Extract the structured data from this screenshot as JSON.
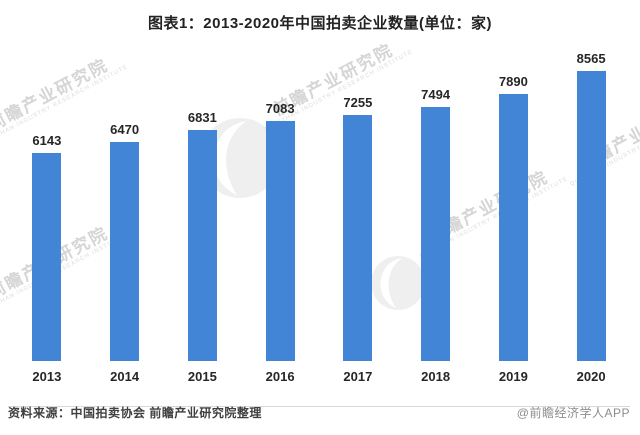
{
  "title": "图表1：2013-2020年中国拍卖企业数量(单位：家)",
  "chart_data": {
    "type": "bar",
    "title": "图表1：2013-2020年中国拍卖企业数量(单位：家)",
    "categories": [
      "2013",
      "2014",
      "2015",
      "2016",
      "2017",
      "2018",
      "2019",
      "2020"
    ],
    "values": [
      6143,
      6470,
      6831,
      7083,
      7255,
      7494,
      7890,
      8565
    ],
    "xlabel": "",
    "ylabel": "",
    "ylim": [
      0,
      9000
    ],
    "grid": false,
    "legend": "none",
    "value_labels": true,
    "bar_color": "#4284D6",
    "axis_line_color": "#d9d9d9",
    "label_color": "#262626"
  },
  "footer": {
    "source": "资料来源：中国拍卖协会 前瞻产业研究院整理",
    "credit": "@前瞻经济学人APP"
  },
  "watermark": {
    "text": "前瞻产业研究院",
    "subtext": "QIANZHAN INDUSTRY RESEARCH INSTITUTE",
    "color": "#d5d5d5"
  }
}
